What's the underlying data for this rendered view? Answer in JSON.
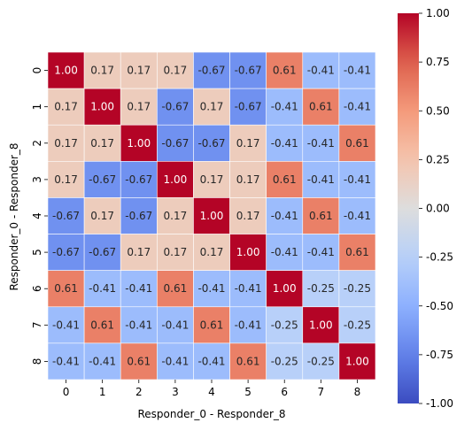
{
  "chart_data": {
    "type": "heatmap",
    "title": "",
    "xlabel": "Responder_0 - Responder_8",
    "ylabel": "Responder_0 - Responder_8",
    "x_ticks": [
      "0",
      "1",
      "2",
      "3",
      "4",
      "5",
      "6",
      "7",
      "8"
    ],
    "y_ticks": [
      "0",
      "1",
      "2",
      "3",
      "4",
      "5",
      "6",
      "7",
      "8"
    ],
    "values": [
      [
        1.0,
        0.17,
        0.17,
        0.17,
        -0.67,
        -0.67,
        0.61,
        -0.41,
        -0.41
      ],
      [
        0.17,
        1.0,
        0.17,
        -0.67,
        0.17,
        -0.67,
        -0.41,
        0.61,
        -0.41
      ],
      [
        0.17,
        0.17,
        1.0,
        -0.67,
        -0.67,
        0.17,
        -0.41,
        -0.41,
        0.61
      ],
      [
        0.17,
        -0.67,
        -0.67,
        1.0,
        0.17,
        0.17,
        0.61,
        -0.41,
        -0.41
      ],
      [
        -0.67,
        0.17,
        -0.67,
        0.17,
        1.0,
        0.17,
        -0.41,
        0.61,
        -0.41
      ],
      [
        -0.67,
        -0.67,
        0.17,
        0.17,
        0.17,
        1.0,
        -0.41,
        -0.41,
        0.61
      ],
      [
        0.61,
        -0.41,
        -0.41,
        0.61,
        -0.41,
        -0.41,
        1.0,
        -0.25,
        -0.25
      ],
      [
        -0.41,
        0.61,
        -0.41,
        -0.41,
        0.61,
        -0.41,
        -0.25,
        1.0,
        -0.25
      ],
      [
        -0.41,
        -0.41,
        0.61,
        -0.41,
        -0.41,
        0.61,
        -0.25,
        -0.25,
        1.0
      ]
    ],
    "value_format": "0.00",
    "colorscale": "coolwarm",
    "vmin": -1.0,
    "vmax": 1.0,
    "colorbar_ticks": [
      "1.00",
      "0.75",
      "0.50",
      "0.25",
      "0.00",
      "-0.25",
      "-0.50",
      "-0.75",
      "-1.00"
    ],
    "colorbar_tick_values": [
      1.0,
      0.75,
      0.5,
      0.25,
      0.0,
      -0.25,
      -0.5,
      -0.75,
      -1.0
    ],
    "grid": false,
    "colors": {
      "low": "#3b4cc0",
      "mid": "#dddddd",
      "high": "#b40426",
      "cell_border": "#ffffff"
    }
  }
}
